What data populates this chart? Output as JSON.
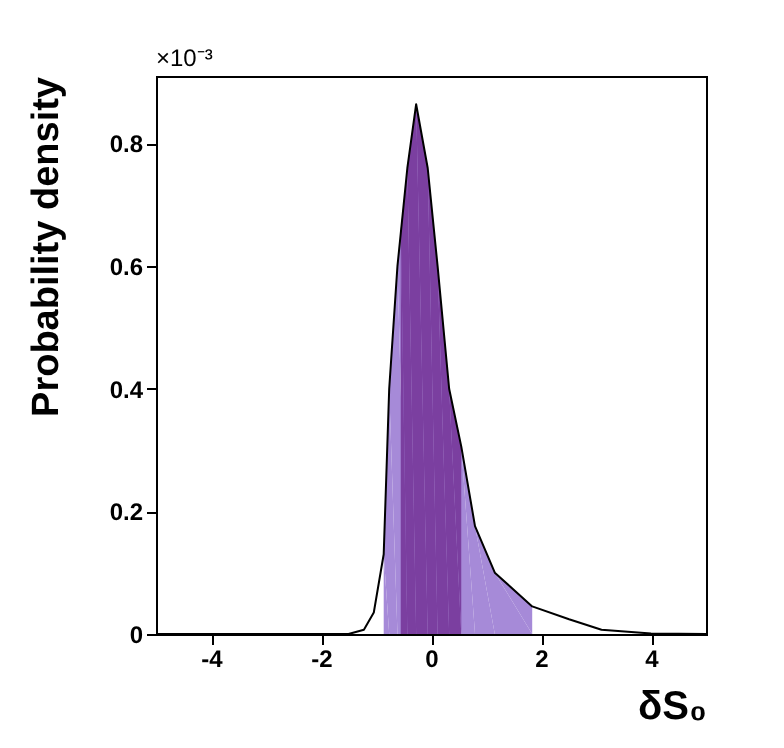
{
  "chart_data": {
    "type": "line",
    "xlabel": "δS₀",
    "ylabel": "Probability density",
    "annotations": [
      "×10⁻³"
    ],
    "xlim": [
      -5,
      5
    ],
    "xticks": [
      -4,
      -2,
      0,
      2,
      4
    ],
    "ylim": [
      0,
      0.91
    ],
    "yticks": [
      0,
      0.2,
      0.4,
      0.6,
      0.8
    ],
    "grid": false,
    "series": [
      {
        "type": "area",
        "color": "#a68ad8",
        "x": [
          -0.86,
          -0.76,
          -0.61,
          -0.43,
          -0.27,
          -0.06,
          0.12,
          0.33,
          0.55,
          0.8,
          1.16,
          1.84
        ],
        "values": [
          0.13,
          0.4,
          0.6,
          0.76,
          0.864,
          0.76,
          0.6,
          0.4,
          0.306,
          0.176,
          0.1,
          0.045
        ]
      },
      {
        "type": "area",
        "color": "#7b3fa0",
        "x": [
          -0.55,
          -0.43,
          -0.27,
          -0.06,
          0.12,
          0.33,
          0.55
        ],
        "values": [
          0.66,
          0.76,
          0.864,
          0.76,
          0.6,
          0.4,
          0.306
        ]
      },
      {
        "color": "#000000",
        "x": [
          -5,
          -1.5,
          -1.22,
          -1.04,
          -0.86,
          -0.76,
          -0.61,
          -0.43,
          -0.27,
          -0.06,
          0.12,
          0.33,
          0.55,
          0.8,
          1.16,
          1.84,
          2.51,
          3.1,
          4,
          5
        ],
        "values": [
          0,
          0,
          0.007,
          0.035,
          0.13,
          0.4,
          0.6,
          0.76,
          0.864,
          0.76,
          0.6,
          0.4,
          0.306,
          0.176,
          0.1,
          0.045,
          0.024,
          0.007,
          0.001,
          0
        ]
      }
    ]
  }
}
